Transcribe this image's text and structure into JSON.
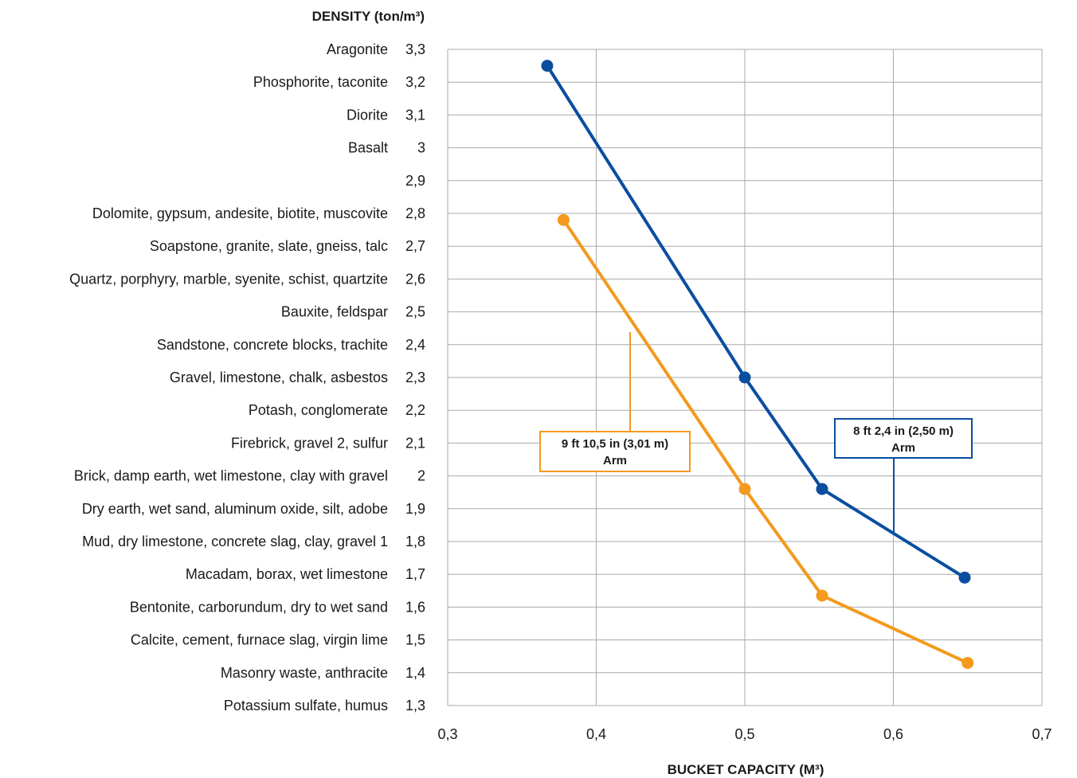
{
  "chart_data": {
    "type": "line",
    "ylabel": "DENSITY (ton/m³)",
    "xlabel": "BUCKET CAPACITY (M³)",
    "xlim": [
      0.3,
      0.7
    ],
    "ylim": [
      1.3,
      3.3
    ],
    "x_ticks": [
      "0,3",
      "0,4",
      "0,5",
      "0,6",
      "0,7"
    ],
    "y_ticks": [
      {
        "value": 3.3,
        "label": "3,3",
        "material": "Aragonite"
      },
      {
        "value": 3.2,
        "label": "3,2",
        "material": "Phosphorite, taconite"
      },
      {
        "value": 3.1,
        "label": "3,1",
        "material": "Diorite"
      },
      {
        "value": 3.0,
        "label": "3",
        "material": "Basalt"
      },
      {
        "value": 2.9,
        "label": "2,9",
        "material": ""
      },
      {
        "value": 2.8,
        "label": "2,8",
        "material": "Dolomite, gypsum, andesite, biotite, muscovite"
      },
      {
        "value": 2.7,
        "label": "2,7",
        "material": "Soapstone, granite, slate, gneiss, talc"
      },
      {
        "value": 2.6,
        "label": "2,6",
        "material": "Quartz, porphyry, marble, syenite, schist, quartzite"
      },
      {
        "value": 2.5,
        "label": "2,5",
        "material": "Bauxite, feldspar"
      },
      {
        "value": 2.4,
        "label": "2,4",
        "material": "Sandstone, concrete blocks, trachite"
      },
      {
        "value": 2.3,
        "label": "2,3",
        "material": "Gravel, limestone, chalk, asbestos"
      },
      {
        "value": 2.2,
        "label": "2,2",
        "material": "Potash, conglomerate"
      },
      {
        "value": 2.1,
        "label": "2,1",
        "material": "Firebrick, gravel 2, sulfur"
      },
      {
        "value": 2.0,
        "label": "2",
        "material": "Brick, damp earth, wet limestone, clay with gravel"
      },
      {
        "value": 1.9,
        "label": "1,9",
        "material": "Dry earth, wet sand, aluminum oxide, silt, adobe"
      },
      {
        "value": 1.8,
        "label": "1,8",
        "material": "Mud, dry limestone, concrete slag, clay, gravel 1"
      },
      {
        "value": 1.7,
        "label": "1,7",
        "material": "Macadam, borax, wet limestone"
      },
      {
        "value": 1.6,
        "label": "1,6",
        "material": "Bentonite, carborundum, dry to wet sand"
      },
      {
        "value": 1.5,
        "label": "1,5",
        "material": "Calcite, cement, furnace slag, virgin lime"
      },
      {
        "value": 1.4,
        "label": "1,4",
        "material": "Masonry waste, anthracite"
      },
      {
        "value": 1.3,
        "label": "1,3",
        "material": "Potassium sulfate, humus"
      }
    ],
    "grid": true,
    "series": [
      {
        "name_line1": "8 ft 2,4 in (2,50 m)",
        "name_line2": "Arm",
        "color": "#0a4ea0",
        "points": [
          [
            0.367,
            3.25
          ],
          [
            0.5,
            2.3
          ],
          [
            0.552,
            1.96
          ],
          [
            0.648,
            1.69
          ]
        ]
      },
      {
        "name_line1": "9 ft 10,5 in (3,01 m)",
        "name_line2": "Arm",
        "color": "#f39a1e",
        "points": [
          [
            0.378,
            2.78
          ],
          [
            0.5,
            1.96
          ],
          [
            0.552,
            1.635
          ],
          [
            0.65,
            1.43
          ]
        ]
      }
    ]
  }
}
